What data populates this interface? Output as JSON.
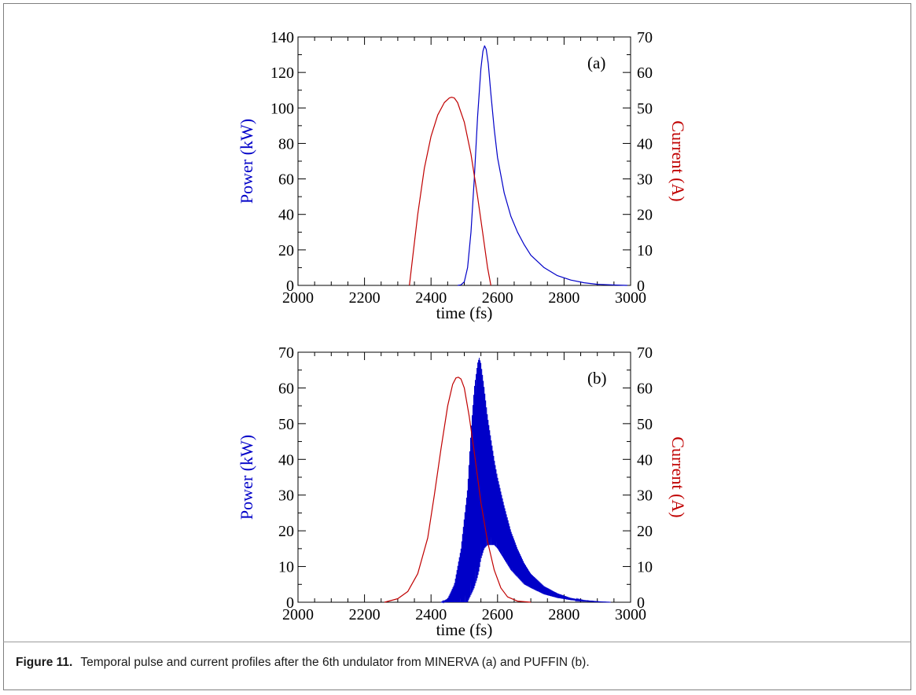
{
  "caption": {
    "label": "Figure 11.",
    "text": "Temporal pulse and current profiles after the 6th undulator from MINERVA (a) and PUFFIN (b)."
  },
  "colors": {
    "power": "#0000c8",
    "current": "#c00000",
    "axis": "#000000"
  },
  "chart_data": [
    {
      "type": "line",
      "panel_label": "(a)",
      "xlabel": "time (fs)",
      "ylabel": "Power (kW)",
      "y2label": "Current (A)",
      "xlim": [
        2000,
        3000
      ],
      "ylim": [
        0,
        140
      ],
      "y2lim": [
        0,
        70
      ],
      "xticks": [
        2000,
        2200,
        2400,
        2600,
        2800,
        3000
      ],
      "yticks": [
        0,
        20,
        40,
        60,
        80,
        100,
        120,
        140
      ],
      "y2ticks": [
        0,
        10,
        20,
        30,
        40,
        50,
        60,
        70
      ],
      "grid": false,
      "series": [
        {
          "axis": "y",
          "color": "#0000c8",
          "x": [
            2480,
            2490,
            2500,
            2510,
            2520,
            2530,
            2540,
            2550,
            2556,
            2561,
            2566,
            2572,
            2580,
            2590,
            2600,
            2620,
            2640,
            2660,
            2680,
            2700,
            2740,
            2780,
            2820,
            2860,
            2900,
            2950,
            2990
          ],
          "y": [
            0,
            0.3,
            2,
            10,
            30,
            60,
            95,
            122,
            132,
            135,
            133,
            125,
            108,
            88,
            72,
            52,
            39,
            30,
            23,
            17,
            10,
            5.5,
            3,
            1.5,
            0.6,
            0.2,
            0
          ]
        },
        {
          "axis": "y2",
          "color": "#c00000",
          "x": [
            2335,
            2345,
            2360,
            2380,
            2400,
            2420,
            2440,
            2455,
            2462,
            2470,
            2480,
            2500,
            2520,
            2540,
            2555,
            2570,
            2580
          ],
          "y": [
            0,
            8,
            20,
            33,
            42,
            48,
            51.5,
            52.8,
            53,
            52.8,
            51.5,
            46,
            37,
            25,
            15,
            5,
            0
          ]
        }
      ]
    },
    {
      "type": "line",
      "panel_label": "(b)",
      "xlabel": "time (fs)",
      "ylabel": "Power (kW)",
      "y2label": "Current (A)",
      "xlim": [
        2000,
        3000
      ],
      "ylim": [
        0,
        70
      ],
      "y2lim": [
        0,
        70
      ],
      "xticks": [
        2000,
        2200,
        2400,
        2600,
        2800,
        3000
      ],
      "yticks": [
        0,
        10,
        20,
        30,
        40,
        50,
        60,
        70
      ],
      "y2ticks": [
        0,
        10,
        20,
        30,
        40,
        50,
        60,
        70
      ],
      "grid": false,
      "series": [
        {
          "axis": "y",
          "color": "#0000c8",
          "style": "fast-oscillation",
          "x": [
            2430,
            2450,
            2470,
            2490,
            2510,
            2520,
            2530,
            2540,
            2545,
            2550,
            2560,
            2570,
            2580,
            2590,
            2600,
            2620,
            2640,
            2660,
            2680,
            2700,
            2740,
            2780,
            2820,
            2860,
            2900,
            2940
          ],
          "upper": [
            0,
            1,
            5,
            15,
            32,
            48,
            60,
            67,
            68.5,
            67,
            60,
            52,
            46,
            40,
            35,
            27,
            20,
            15,
            11,
            8,
            4.5,
            2.5,
            1.2,
            0.5,
            0.2,
            0
          ],
          "lower": [
            0,
            0,
            0,
            0,
            0,
            2,
            4,
            7,
            9,
            12,
            15,
            16,
            16,
            16,
            15,
            12,
            9,
            7,
            5,
            4,
            2.2,
            1.2,
            0.6,
            0.3,
            0.1,
            0
          ]
        },
        {
          "axis": "y2",
          "color": "#c00000",
          "x": [
            2260,
            2300,
            2330,
            2360,
            2390,
            2410,
            2430,
            2450,
            2465,
            2475,
            2482,
            2490,
            2500,
            2515,
            2530,
            2550,
            2570,
            2590,
            2610,
            2630,
            2660,
            2700
          ],
          "y": [
            0,
            1,
            3,
            8,
            18,
            30,
            43,
            55,
            61,
            62.8,
            63,
            62.5,
            60,
            52,
            42,
            28,
            17,
            9,
            4,
            1.5,
            0.3,
            0
          ]
        }
      ]
    }
  ]
}
